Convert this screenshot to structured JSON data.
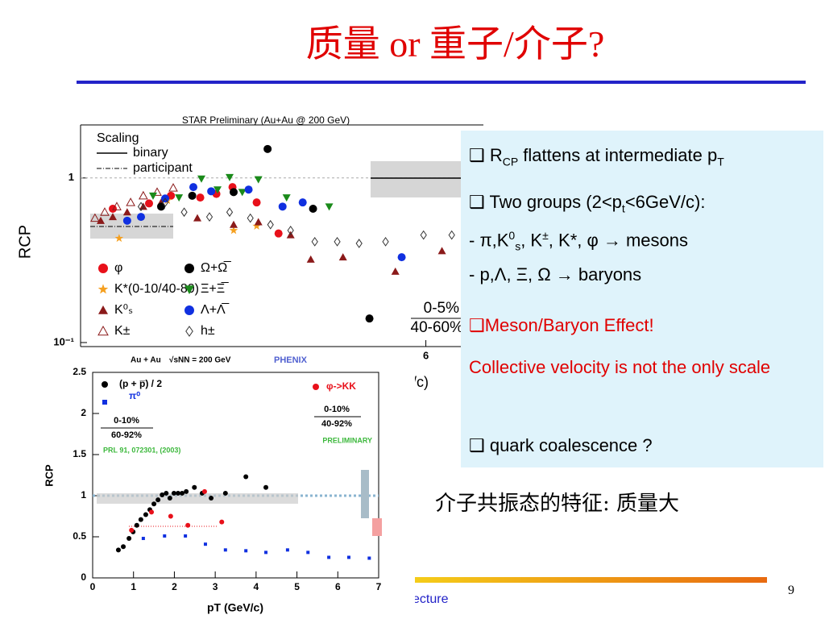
{
  "slide": {
    "title": "质量 or 重子/介子?",
    "page_number": "9",
    "footer": "ecture",
    "note": "介子共振态的特征: 质量大"
  },
  "textbox": {
    "lines": [
      [
        "❑ R",
        "CP",
        " flattens at intermediate p",
        "T"
      ],
      [
        "❑ Two groups (2<p",
        "t",
        "<6GeV/c):"
      ],
      [
        " - π,K",
        "0",
        "s",
        ", K",
        "±",
        ", K*, φ  → mesons"
      ],
      [
        " - p,Λ, Ξ, Ω  → baryons"
      ],
      [
        "❑Meson/Baryon Effect!"
      ],
      [
        "Collective velocity is not the only scale"
      ],
      [
        "❑ quark coalescence ?"
      ]
    ]
  },
  "chart_data": [
    {
      "type": "scatter",
      "title": "STAR Preliminary (Au+Au @ 200 GeV)",
      "ylabel": "RCP",
      "xlabel": "pT (GeV/c)",
      "yscale": "log",
      "xlim": [
        0,
        7
      ],
      "ylim": [
        0.1,
        2.1
      ],
      "yticks": [
        {
          "value": 0.1,
          "label": "10⁻¹"
        },
        1
      ],
      "xticks": [
        6
      ],
      "hline": 1,
      "scaling_legend": {
        "title": "Scaling",
        "entries": [
          "binary",
          "participant"
        ]
      },
      "centrality": [
        "0-5%",
        "40-60%"
      ],
      "series": [
        {
          "name": "φ",
          "color": "#e8101a",
          "marker": "circle",
          "x": [
            0.56,
            1.19,
            1.57,
            2.08,
            2.36,
            2.64,
            3.06,
            3.44
          ],
          "values": [
            0.65,
            0.7,
            0.78,
            0.76,
            0.8,
            0.88,
            0.71,
            0.46
          ]
        },
        {
          "name": "K*(0-10/40-80)",
          "color": "#f5a020",
          "marker": "star",
          "x": [
            0.67,
            1.51,
            2.66,
            3.06
          ],
          "values": [
            0.43,
            0.73,
            0.48,
            0.51
          ]
        },
        {
          "name": "K⁰ₛ",
          "color": "#8b1a1a",
          "marker": "triangle",
          "x": [
            0.35,
            0.56,
            0.81,
            1.09,
            1.4,
            2.03,
            2.66,
            3.09,
            3.65,
            4.0,
            4.56,
            5.47,
            6.28
          ],
          "values": [
            0.55,
            0.58,
            0.62,
            0.67,
            0.71,
            0.57,
            0.52,
            0.54,
            0.45,
            0.32,
            0.33,
            0.27,
            0.36
          ]
        },
        {
          "name": "K±",
          "color": "#8b1a1a",
          "marker": "triangle-open",
          "x": [
            0.25,
            0.42,
            0.63,
            0.87,
            1.09,
            1.33,
            1.61
          ],
          "values": [
            0.57,
            0.62,
            0.67,
            0.71,
            0.78,
            0.82,
            0.87
          ]
        },
        {
          "name": "Ω+Ω̅",
          "color": "#000000",
          "marker": "circle",
          "x": [
            1.4,
            1.94,
            2.66,
            3.25,
            4.04,
            5.02
          ],
          "values": [
            0.67,
            0.78,
            0.82,
            1.5,
            0.65,
            0.14
          ]
        },
        {
          "name": "Ξ+Ξ̅",
          "color": "#1a8a1a",
          "marker": "triangle-down",
          "x": [
            1.26,
            1.71,
            2.1,
            2.38,
            2.59,
            2.81,
            3.09,
            3.58,
            4.32
          ],
          "values": [
            0.78,
            0.76,
            0.99,
            0.85,
            1.01,
            0.82,
            0.98,
            0.76,
            0.67
          ]
        },
        {
          "name": "Λ+Λ̅",
          "color": "#1030e0",
          "marker": "circle",
          "x": [
            0.81,
            1.05,
            1.47,
            1.96,
            2.27,
            2.92,
            3.51,
            3.86,
            5.58
          ],
          "values": [
            0.55,
            0.58,
            0.75,
            0.88,
            0.83,
            0.85,
            0.67,
            0.71,
            0.33
          ]
        },
        {
          "name": "h±",
          "color": "#333333",
          "marker": "diamond-open",
          "x": [
            1.05,
            1.47,
            1.8,
            2.24,
            2.59,
            2.95,
            3.3,
            3.65,
            4.07,
            4.46,
            4.84,
            5.3,
            5.96,
            6.45
          ],
          "values": [
            0.67,
            0.71,
            0.62,
            0.58,
            0.62,
            0.57,
            0.52,
            0.48,
            0.41,
            0.41,
            0.4,
            0.41,
            0.45,
            0.45
          ]
        }
      ]
    },
    {
      "type": "scatter",
      "title": "Au + Au",
      "subtitle": "√sNN = 200 GeV",
      "experiment": "PHENIX",
      "ylabel": "RCP",
      "xlabel": "pT (GeV/c)",
      "xlim": [
        0,
        7
      ],
      "ylim": [
        0,
        2.5
      ],
      "xticks": [
        0,
        1,
        2,
        3,
        4,
        5,
        6,
        7
      ],
      "yticks": [
        0,
        0.5,
        1,
        1.5,
        2,
        2.5
      ],
      "hline": 1,
      "centrality": [
        [
          "0-10%",
          "60-92%"
        ],
        [
          "0-10%",
          "40-92%"
        ]
      ],
      "reference": "PRL 91, 072301, (2003)",
      "status": "PRELIMINARY",
      "series": [
        {
          "name": "(p + p̅) / 2",
          "color": "#000000",
          "marker": "circle",
          "x": [
            0.63,
            0.75,
            0.89,
            0.99,
            1.08,
            1.18,
            1.3,
            1.4,
            1.5,
            1.6,
            1.7,
            1.8,
            1.89,
            1.99,
            2.09,
            2.19,
            2.29,
            2.49,
            2.68,
            2.9,
            3.25,
            3.75,
            4.24
          ],
          "values": [
            0.34,
            0.38,
            0.48,
            0.56,
            0.64,
            0.71,
            0.77,
            0.83,
            0.9,
            0.95,
            1.01,
            1.03,
            0.97,
            1.03,
            1.03,
            1.03,
            1.05,
            1.1,
            1.03,
            0.97,
            1.03,
            1.23,
            1.1
          ]
        },
        {
          "name": "π⁰",
          "color": "#1030e0",
          "marker": "square",
          "x": [
            1.24,
            1.76,
            2.27,
            2.76,
            3.25,
            3.75,
            4.24,
            4.77,
            5.27,
            5.78,
            6.27,
            6.77
          ],
          "values": [
            0.48,
            0.51,
            0.51,
            0.41,
            0.34,
            0.33,
            0.31,
            0.34,
            0.31,
            0.25,
            0.25,
            0.24
          ]
        },
        {
          "name": "φ->KK",
          "color": "#e8101a",
          "marker": "circle",
          "x": [
            0.95,
            1.44,
            1.91,
            2.33,
            2.74,
            3.16
          ],
          "values": [
            0.58,
            0.8,
            0.75,
            0.64,
            1.05,
            0.68
          ]
        }
      ]
    }
  ]
}
